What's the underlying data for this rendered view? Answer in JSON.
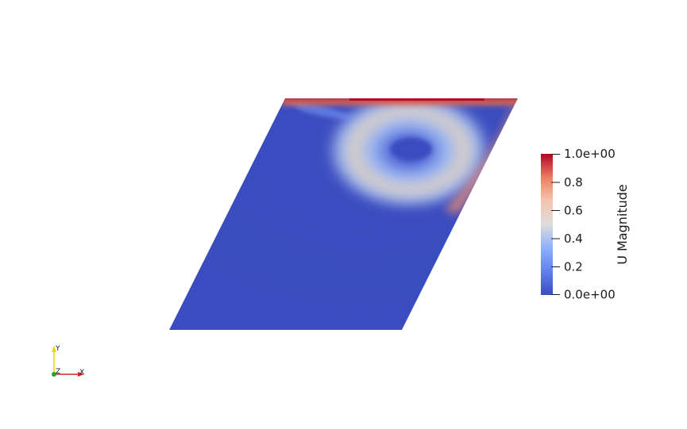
{
  "field": {
    "name": "U Magnitude",
    "range": [
      0.0,
      1.0
    ],
    "colormap": [
      "#3b4cc0",
      "#7b9ff9",
      "#c0d4f5",
      "#dddddd",
      "#f2cbb7",
      "#ee8468",
      "#b40426"
    ]
  },
  "colorbar": {
    "title": "U Magnitude",
    "tick_labels": [
      "1.0e+00",
      "0.8",
      "0.6",
      "0.4",
      "0.2",
      "0.0e+00"
    ]
  },
  "orientation_axes": {
    "x_label": "X",
    "y_label": "Y",
    "z_label": "Z",
    "x_color": "#d62728",
    "y_color": "#e6d800",
    "z_color": "#2ca02c"
  },
  "mesh": {
    "shape": "parallelogram",
    "background_color": "#3b4cc0"
  }
}
